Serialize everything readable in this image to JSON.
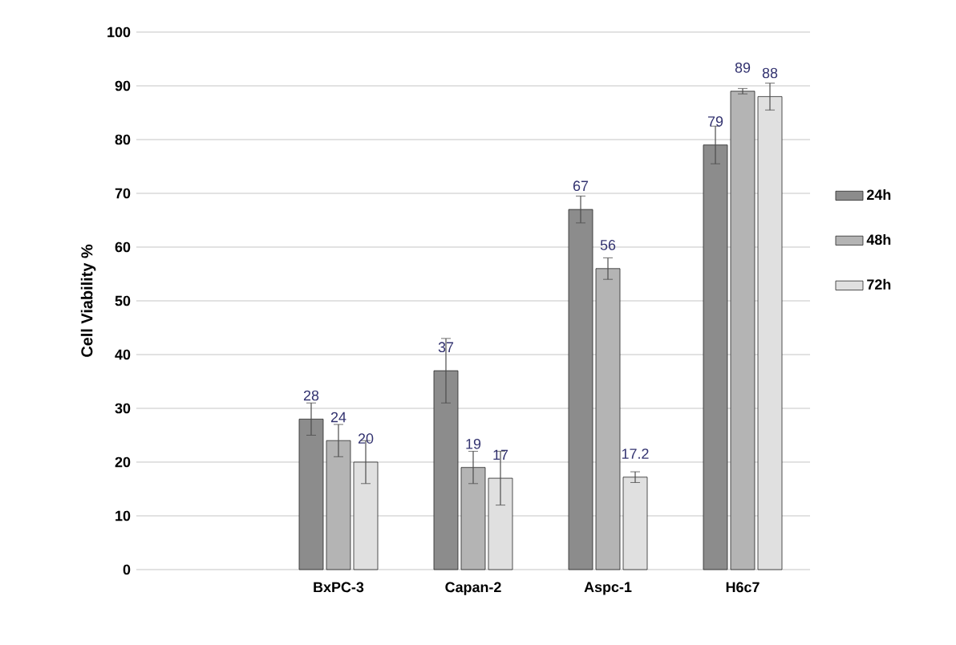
{
  "chart_data": {
    "type": "bar",
    "ylabel": "Cell Viability %",
    "categories": [
      null,
      "BxPC-3",
      "Capan-2",
      "Aspc-1",
      "H6c7"
    ],
    "series": [
      {
        "name": "24h",
        "color": "#8c8c8c",
        "values": [
          null,
          28,
          37,
          67,
          79
        ],
        "errors": [
          null,
          3,
          6,
          2.5,
          3.5
        ]
      },
      {
        "name": "48h",
        "color": "#b4b4b4",
        "values": [
          null,
          24,
          19,
          56,
          89
        ],
        "errors": [
          null,
          3,
          3,
          2,
          0.5
        ]
      },
      {
        "name": "72h",
        "color": "#e0e0e0",
        "values": [
          null,
          20,
          17,
          17.2,
          88
        ],
        "errors": [
          null,
          4,
          5,
          1,
          2.5
        ]
      }
    ],
    "ylim": [
      0,
      100
    ],
    "yticks": [
      0,
      10,
      20,
      30,
      40,
      50,
      60,
      70,
      80,
      90,
      100
    ],
    "grid": "y",
    "legend": "right",
    "data_labels": true
  }
}
